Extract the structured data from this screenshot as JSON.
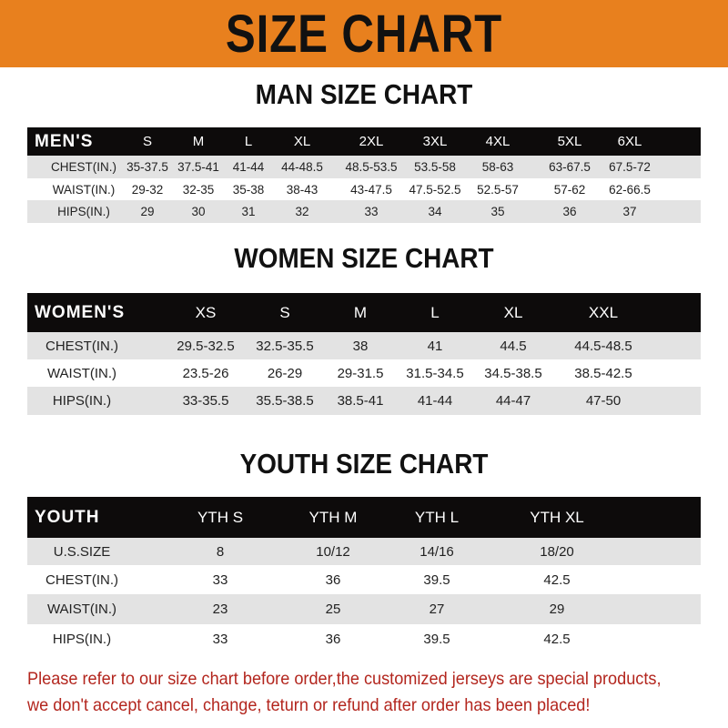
{
  "banner_title": "SIZE CHART",
  "colors": {
    "banner": "#e8801e",
    "header_row": "#0d0b0b",
    "stripe": "#e3e3e3",
    "note": "#b3261e"
  },
  "men": {
    "title": "MAN SIZE CHART",
    "header": [
      "MEN'S",
      "S",
      "M",
      "L",
      "XL",
      "2XL",
      "3XL",
      "4XL",
      "5XL",
      "6XL"
    ],
    "rows": [
      [
        "CHEST(IN.)",
        "35-37.5",
        "37.5-41",
        "41-44",
        "44-48.5",
        "48.5-53.5",
        "53.5-58",
        "58-63",
        "63-67.5",
        "67.5-72"
      ],
      [
        "WAIST(IN.)",
        "29-32",
        "32-35",
        "35-38",
        "38-43",
        "43-47.5",
        "47.5-52.5",
        "52.5-57",
        "57-62",
        "62-66.5"
      ],
      [
        "HIPS(IN.)",
        "29",
        "30",
        "31",
        "32",
        "33",
        "34",
        "35",
        "36",
        "37"
      ]
    ]
  },
  "women": {
    "title": "WOMEN SIZE CHART",
    "header": [
      "WOMEN'S",
      "XS",
      "S",
      "M",
      "L",
      "XL",
      "XXL"
    ],
    "rows": [
      [
        "CHEST(IN.)",
        "29.5-32.5",
        "32.5-35.5",
        "38",
        "41",
        "44.5",
        "44.5-48.5"
      ],
      [
        "WAIST(IN.)",
        "23.5-26",
        "26-29",
        "29-31.5",
        "31.5-34.5",
        "34.5-38.5",
        "38.5-42.5"
      ],
      [
        "HIPS(IN.)",
        "33-35.5",
        "35.5-38.5",
        "38.5-41",
        "41-44",
        "44-47",
        "47-50"
      ]
    ]
  },
  "youth": {
    "title": "YOUTH SIZE CHART",
    "header": [
      "YOUTH",
      "YTH S",
      "YTH M",
      "YTH L",
      "YTH XL"
    ],
    "rows": [
      [
        "U.S.SIZE",
        "8",
        "10/12",
        "14/16",
        "18/20"
      ],
      [
        "CHEST(IN.)",
        "33",
        "36",
        "39.5",
        "42.5"
      ],
      [
        "WAIST(IN.)",
        "23",
        "25",
        "27",
        "29"
      ],
      [
        "HIPS(IN.)",
        "33",
        "36",
        "39.5",
        "42.5"
      ]
    ]
  },
  "note": {
    "line1": "Please refer to our size chart before order,the customized jerseys are special products,",
    "line2": "we don't accept cancel, change, teturn or refund after order has been placed!"
  }
}
